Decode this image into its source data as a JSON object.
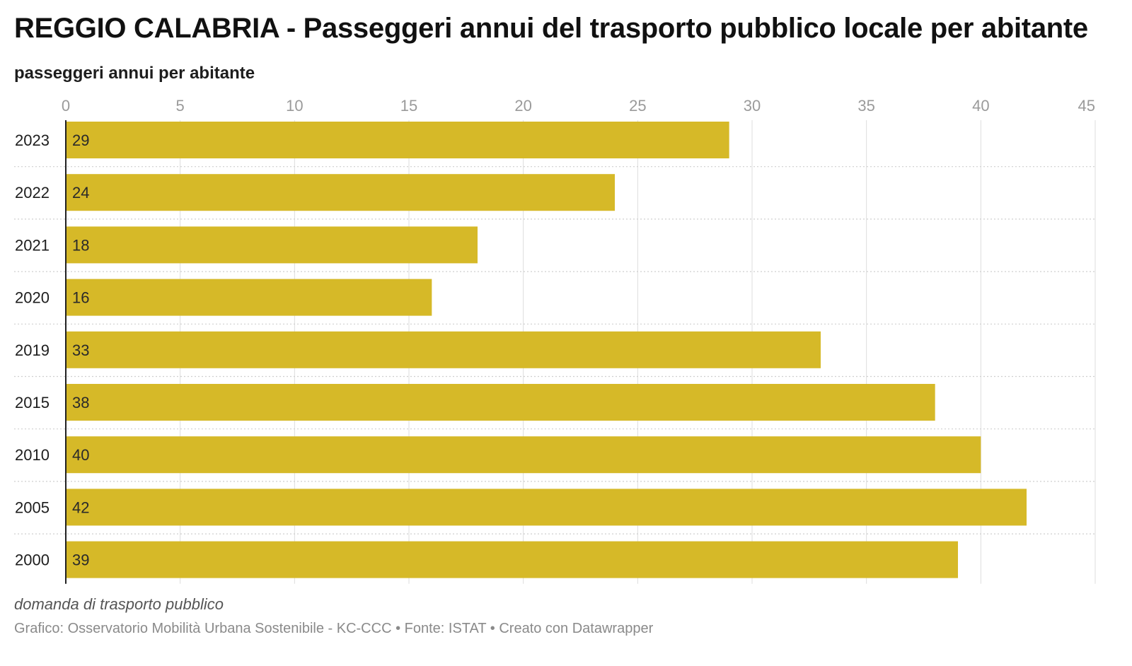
{
  "header": {
    "title": "REGGIO CALABRIA - Passeggeri annui del trasporto pubblico locale per abitante",
    "subtitle": "passeggeri annui per abitante"
  },
  "footer": {
    "note": "domanda di trasporto pubblico",
    "source": "Grafico: Osservatorio Mobilità Urbana Sostenibile - KC-CCC • Fonte: ISTAT • Creato con Datawrapper"
  },
  "chart_data": {
    "type": "bar",
    "orientation": "horizontal",
    "title": "REGGIO CALABRIA - Passeggeri annui del trasporto pubblico locale per abitante",
    "subtitle": "passeggeri annui per abitante",
    "categories": [
      "2023",
      "2022",
      "2021",
      "2020",
      "2019",
      "2015",
      "2010",
      "2005",
      "2000"
    ],
    "values": [
      29,
      24,
      18,
      16,
      33,
      38,
      40,
      42,
      39
    ],
    "xlim": [
      0,
      45
    ],
    "xticks": [
      0,
      5,
      10,
      15,
      20,
      25,
      30,
      35,
      40,
      45
    ],
    "xaxis_position": "top",
    "grid": true,
    "legend": "none",
    "colors": {
      "bar": "#d6b928",
      "grid": "#dddddd",
      "axis": "#222222"
    }
  }
}
